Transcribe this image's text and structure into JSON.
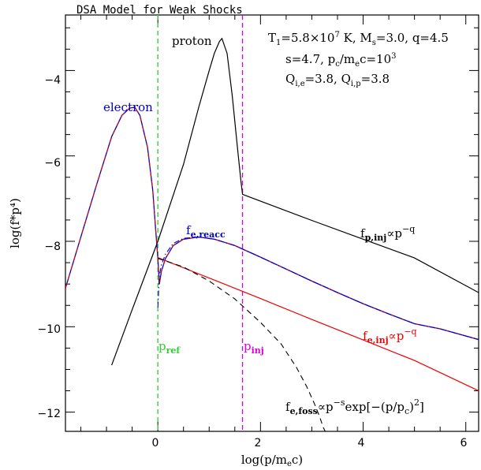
{
  "chart_data": {
    "type": "line",
    "title": "DSA Model for Weak Shocks",
    "xlabel": "log(p/m",
    "xlabel_sub": "e",
    "xlabel_end": "c)",
    "ylabel": "log(f*p⁴)",
    "xlim": [
      -1.8,
      6.25
    ],
    "ylim": [
      -12.45,
      -2.7
    ],
    "xticks": [
      0,
      2,
      4,
      6
    ],
    "yticks": [
      -12,
      -10,
      -8,
      -6,
      -4
    ],
    "xtick_labels": [
      "0",
      "2",
      "4",
      "6"
    ],
    "ytick_labels": [
      "−12",
      "−10",
      "−8",
      "−6",
      "−4"
    ],
    "parameters": {
      "line1": {
        "t_sym": "T",
        "t_sub": "1",
        "t_val": "=5.8×10",
        "t_exp": "7",
        "t_rest": " K, M",
        "ms_sub": "s",
        "ms_val": "=3.0, q=4.5"
      },
      "line2": {
        "a": "s=4.7, p",
        "a_sub": "c",
        "b": "/m",
        "b_sub": "e",
        "c": "c=10",
        "c_exp": "3"
      },
      "line3": {
        "a": "Q",
        "a_sub": "i,e",
        "b": "=3.8, Q",
        "b_sub": "i,p",
        "c": "=3.8"
      }
    },
    "annotations": {
      "proton": "proton",
      "electron": "electron",
      "f_reacc": {
        "base": "f",
        "sub": "e,reacc"
      },
      "f_pinj": {
        "base": "f",
        "sub": "p,inj",
        "rest": "∝p",
        "exp": "−q"
      },
      "f_einj": {
        "base": "f",
        "sub": "e,inj",
        "rest": "∝p",
        "exp": "−q"
      },
      "f_foss": {
        "base": "f",
        "sub": "e,foss",
        "rest": "∝p",
        "exp": "−s",
        "tail": "exp[−(p/p",
        "tail_sub": "c",
        "tail_end": ")",
        "tail_exp": "2",
        "close": "]"
      },
      "p_ref": {
        "base": "p",
        "sub": "ref"
      },
      "p_inj": {
        "base": "p",
        "sub": "inj"
      }
    },
    "vlines": [
      {
        "name": "p_ref",
        "x": 0,
        "color": "#33cc33"
      },
      {
        "name": "p_inj",
        "x": 1.65,
        "color": "#dd00dd"
      }
    ],
    "colors": {
      "proton": "#000000",
      "electron": "#0000cc",
      "electron_dash": "#dd0000",
      "e_inj": "#ee0000",
      "reacc": "#0000cc",
      "foss": "#000000"
    },
    "series": [
      {
        "name": "proton",
        "x": [
          -0.9,
          -0.5,
          0,
          0.5,
          0.8,
          1.0,
          1.1,
          1.2,
          1.25,
          1.35,
          1.45,
          1.55,
          1.62,
          1.65,
          2,
          3,
          4,
          5,
          6.25
        ],
        "y": [
          -10.9,
          -9.6,
          -8.0,
          -6.2,
          -4.85,
          -4.0,
          -3.6,
          -3.32,
          -3.25,
          -3.6,
          -4.6,
          -5.8,
          -6.6,
          -6.9,
          -7.06,
          -7.51,
          -7.95,
          -8.39,
          -9.2
        ]
      },
      {
        "name": "electron",
        "x": [
          -1.8,
          -1.5,
          -1.2,
          -0.9,
          -0.7,
          -0.55,
          -0.45,
          -0.35,
          -0.2,
          -0.1,
          -0.05,
          0.0,
          0.03,
          0.07,
          0.15,
          0.3,
          0.5,
          0.8,
          1.1,
          1.5,
          2.0,
          2.5,
          3.0,
          3.5,
          4.0,
          4.5,
          5.0,
          5.5,
          6.25
        ],
        "y": [
          -9.1,
          -7.9,
          -6.7,
          -5.55,
          -5.05,
          -4.88,
          -4.86,
          -5.05,
          -5.8,
          -6.8,
          -7.6,
          -8.4,
          -9.0,
          -8.7,
          -8.4,
          -8.1,
          -7.95,
          -7.9,
          -7.95,
          -8.1,
          -8.37,
          -8.65,
          -8.93,
          -9.2,
          -9.46,
          -9.7,
          -9.93,
          -10.05,
          -10.3
        ]
      },
      {
        "name": "e_inj",
        "x": [
          0,
          1,
          2,
          3,
          4,
          5,
          6.25
        ],
        "y": [
          -8.38,
          -8.86,
          -9.34,
          -9.83,
          -10.31,
          -10.79,
          -11.5
        ]
      },
      {
        "name": "e_reacc",
        "x": [
          0.0,
          0.03,
          0.07,
          0.15,
          0.3,
          0.5,
          0.8,
          1.1,
          1.5,
          2.0,
          2.5,
          3.0,
          3.5,
          4.0,
          4.5,
          5.0,
          5.5,
          6.25
        ],
        "y": [
          -9.55,
          -8.8,
          -8.55,
          -8.3,
          -8.05,
          -7.93,
          -7.9,
          -7.95,
          -8.1,
          -8.37,
          -8.65,
          -8.93,
          -9.2,
          -9.46,
          -9.7,
          -9.93,
          -10.05,
          -10.3
        ]
      },
      {
        "name": "e_foss",
        "x": [
          0,
          0.5,
          1.0,
          1.5,
          2.0,
          2.4,
          2.7,
          2.9,
          3.05,
          3.15,
          3.22,
          3.26
        ],
        "y": [
          -8.4,
          -8.6,
          -8.93,
          -9.35,
          -9.9,
          -10.4,
          -10.95,
          -11.4,
          -11.8,
          -12.1,
          -12.35,
          -12.45
        ]
      }
    ]
  }
}
